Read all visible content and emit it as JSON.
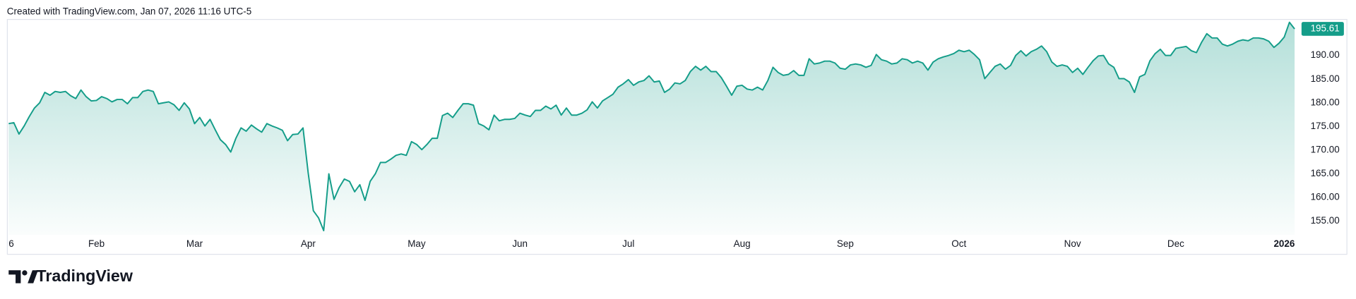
{
  "credit": "Created with TradingView.com, Jan 07, 2026 11:16 UTC-5",
  "brand": "TradingView",
  "chart_data": {
    "type": "area",
    "color": "#149d89",
    "grid": false,
    "ylim": [
      152.1,
      197.7
    ],
    "yticks": [
      {
        "value": 155,
        "label": "155.00"
      },
      {
        "value": 160,
        "label": "160.00"
      },
      {
        "value": 165,
        "label": "165.00"
      },
      {
        "value": 170,
        "label": "170.00"
      },
      {
        "value": 175,
        "label": "175.00"
      },
      {
        "value": 180,
        "label": "180.00"
      },
      {
        "value": 185,
        "label": "185.00"
      },
      {
        "value": 190,
        "label": "190.00"
      }
    ],
    "last_value": 195.61,
    "categories": [
      "6",
      null,
      null,
      null,
      null,
      null,
      null,
      null,
      null,
      null,
      null,
      null,
      null,
      null,
      null,
      null,
      null,
      "Feb",
      null,
      null,
      null,
      null,
      null,
      null,
      null,
      null,
      null,
      null,
      null,
      null,
      null,
      null,
      null,
      null,
      null,
      null,
      "Mar",
      null,
      null,
      null,
      null,
      null,
      null,
      null,
      null,
      null,
      null,
      null,
      null,
      null,
      null,
      null,
      null,
      null,
      null,
      null,
      null,
      null,
      "Apr",
      null,
      null,
      null,
      null,
      null,
      null,
      null,
      null,
      null,
      null,
      null,
      null,
      null,
      null,
      null,
      null,
      null,
      null,
      null,
      null,
      "May",
      null,
      null,
      null,
      null,
      null,
      null,
      null,
      null,
      null,
      null,
      null,
      null,
      null,
      null,
      null,
      null,
      null,
      null,
      null,
      "Jun",
      null,
      null,
      null,
      null,
      null,
      null,
      null,
      null,
      null,
      null,
      null,
      null,
      null,
      null,
      null,
      null,
      null,
      null,
      null,
      null,
      "Jul",
      null,
      null,
      null,
      null,
      null,
      null,
      null,
      null,
      null,
      null,
      null,
      null,
      null,
      null,
      null,
      null,
      null,
      null,
      null,
      null,
      null,
      "Aug",
      null,
      null,
      null,
      null,
      null,
      null,
      null,
      null,
      null,
      null,
      null,
      null,
      null,
      null,
      null,
      null,
      null,
      null,
      null,
      "Sep",
      null,
      null,
      null,
      null,
      null,
      null,
      null,
      null,
      null,
      null,
      null,
      null,
      null,
      null,
      null,
      null,
      null,
      null,
      null,
      null,
      null,
      "Oct",
      null,
      null,
      null,
      null,
      null,
      null,
      null,
      null,
      null,
      null,
      null,
      null,
      null,
      null,
      null,
      null,
      null,
      null,
      null,
      null,
      null,
      "Nov",
      null,
      null,
      null,
      null,
      null,
      null,
      null,
      null,
      null,
      null,
      null,
      null,
      null,
      null,
      null,
      null,
      null,
      null,
      null,
      "Dec",
      null,
      null,
      null,
      null,
      null,
      null,
      null,
      null,
      null,
      null,
      null,
      null,
      null,
      null,
      null,
      null,
      null,
      null,
      null,
      null,
      "2026",
      null,
      null
    ],
    "values": [
      175.6,
      175.8,
      173.4,
      175.1,
      177.1,
      178.9,
      180.0,
      182.2,
      181.6,
      182.4,
      182.2,
      182.4,
      181.5,
      180.9,
      182.7,
      181.3,
      180.4,
      180.5,
      181.3,
      180.9,
      180.2,
      180.7,
      180.7,
      179.8,
      181.1,
      181.1,
      182.4,
      182.7,
      182.4,
      179.8,
      180.0,
      180.2,
      179.6,
      178.4,
      180.0,
      178.7,
      175.6,
      176.9,
      175.1,
      176.5,
      174.3,
      172.2,
      171.2,
      169.6,
      172.5,
      174.7,
      174.0,
      175.3,
      174.5,
      173.8,
      175.6,
      175.1,
      174.7,
      174.2,
      172.0,
      173.3,
      173.4,
      174.7,
      165.2,
      157.2,
      155.7,
      153.0,
      165.0,
      159.6,
      162.1,
      163.9,
      163.4,
      161.2,
      162.7,
      159.4,
      163.4,
      165.0,
      167.4,
      167.4,
      168.1,
      168.9,
      169.2,
      168.9,
      171.8,
      171.2,
      170.1,
      171.2,
      172.5,
      172.5,
      177.3,
      177.8,
      176.9,
      178.4,
      179.8,
      179.8,
      179.5,
      175.6,
      175.1,
      174.3,
      177.4,
      176.2,
      176.5,
      176.5,
      176.7,
      177.8,
      177.4,
      177.1,
      178.4,
      178.4,
      179.3,
      178.7,
      179.5,
      177.4,
      178.9,
      177.4,
      177.4,
      177.8,
      178.5,
      180.2,
      178.9,
      180.4,
      181.1,
      181.8,
      183.3,
      184.0,
      184.9,
      183.7,
      184.4,
      184.7,
      185.7,
      184.4,
      184.6,
      182.2,
      182.9,
      184.2,
      184.0,
      184.7,
      186.6,
      187.7,
      186.9,
      187.7,
      186.6,
      186.6,
      185.3,
      183.5,
      181.6,
      183.5,
      183.7,
      182.9,
      182.7,
      183.3,
      182.7,
      184.7,
      187.5,
      186.4,
      185.8,
      186.0,
      186.8,
      185.8,
      185.8,
      189.3,
      188.2,
      188.4,
      188.8,
      188.8,
      188.4,
      187.3,
      187.1,
      188.0,
      188.2,
      188.0,
      187.5,
      187.9,
      190.2,
      189.1,
      188.8,
      188.2,
      188.4,
      189.3,
      189.1,
      188.4,
      188.8,
      188.4,
      186.9,
      188.6,
      189.3,
      189.7,
      190.0,
      190.4,
      191.1,
      190.8,
      191.1,
      190.2,
      189.1,
      185.1,
      186.4,
      187.7,
      188.2,
      187.1,
      187.9,
      190.0,
      191.0,
      189.9,
      190.8,
      191.3,
      192.0,
      190.8,
      188.6,
      187.7,
      188.0,
      187.7,
      186.4,
      187.3,
      186.0,
      187.5,
      188.9,
      189.9,
      190.0,
      188.2,
      187.5,
      185.1,
      185.1,
      184.4,
      182.2,
      185.5,
      186.0,
      188.9,
      190.4,
      191.3,
      190.0,
      190.0,
      191.5,
      191.7,
      191.9,
      191.0,
      190.6,
      192.8,
      194.6,
      193.7,
      193.7,
      192.4,
      192.0,
      192.4,
      193.0,
      193.3,
      193.1,
      193.7,
      193.7,
      193.5,
      193.0,
      191.7,
      192.6,
      193.9,
      197.0,
      195.61
    ]
  }
}
